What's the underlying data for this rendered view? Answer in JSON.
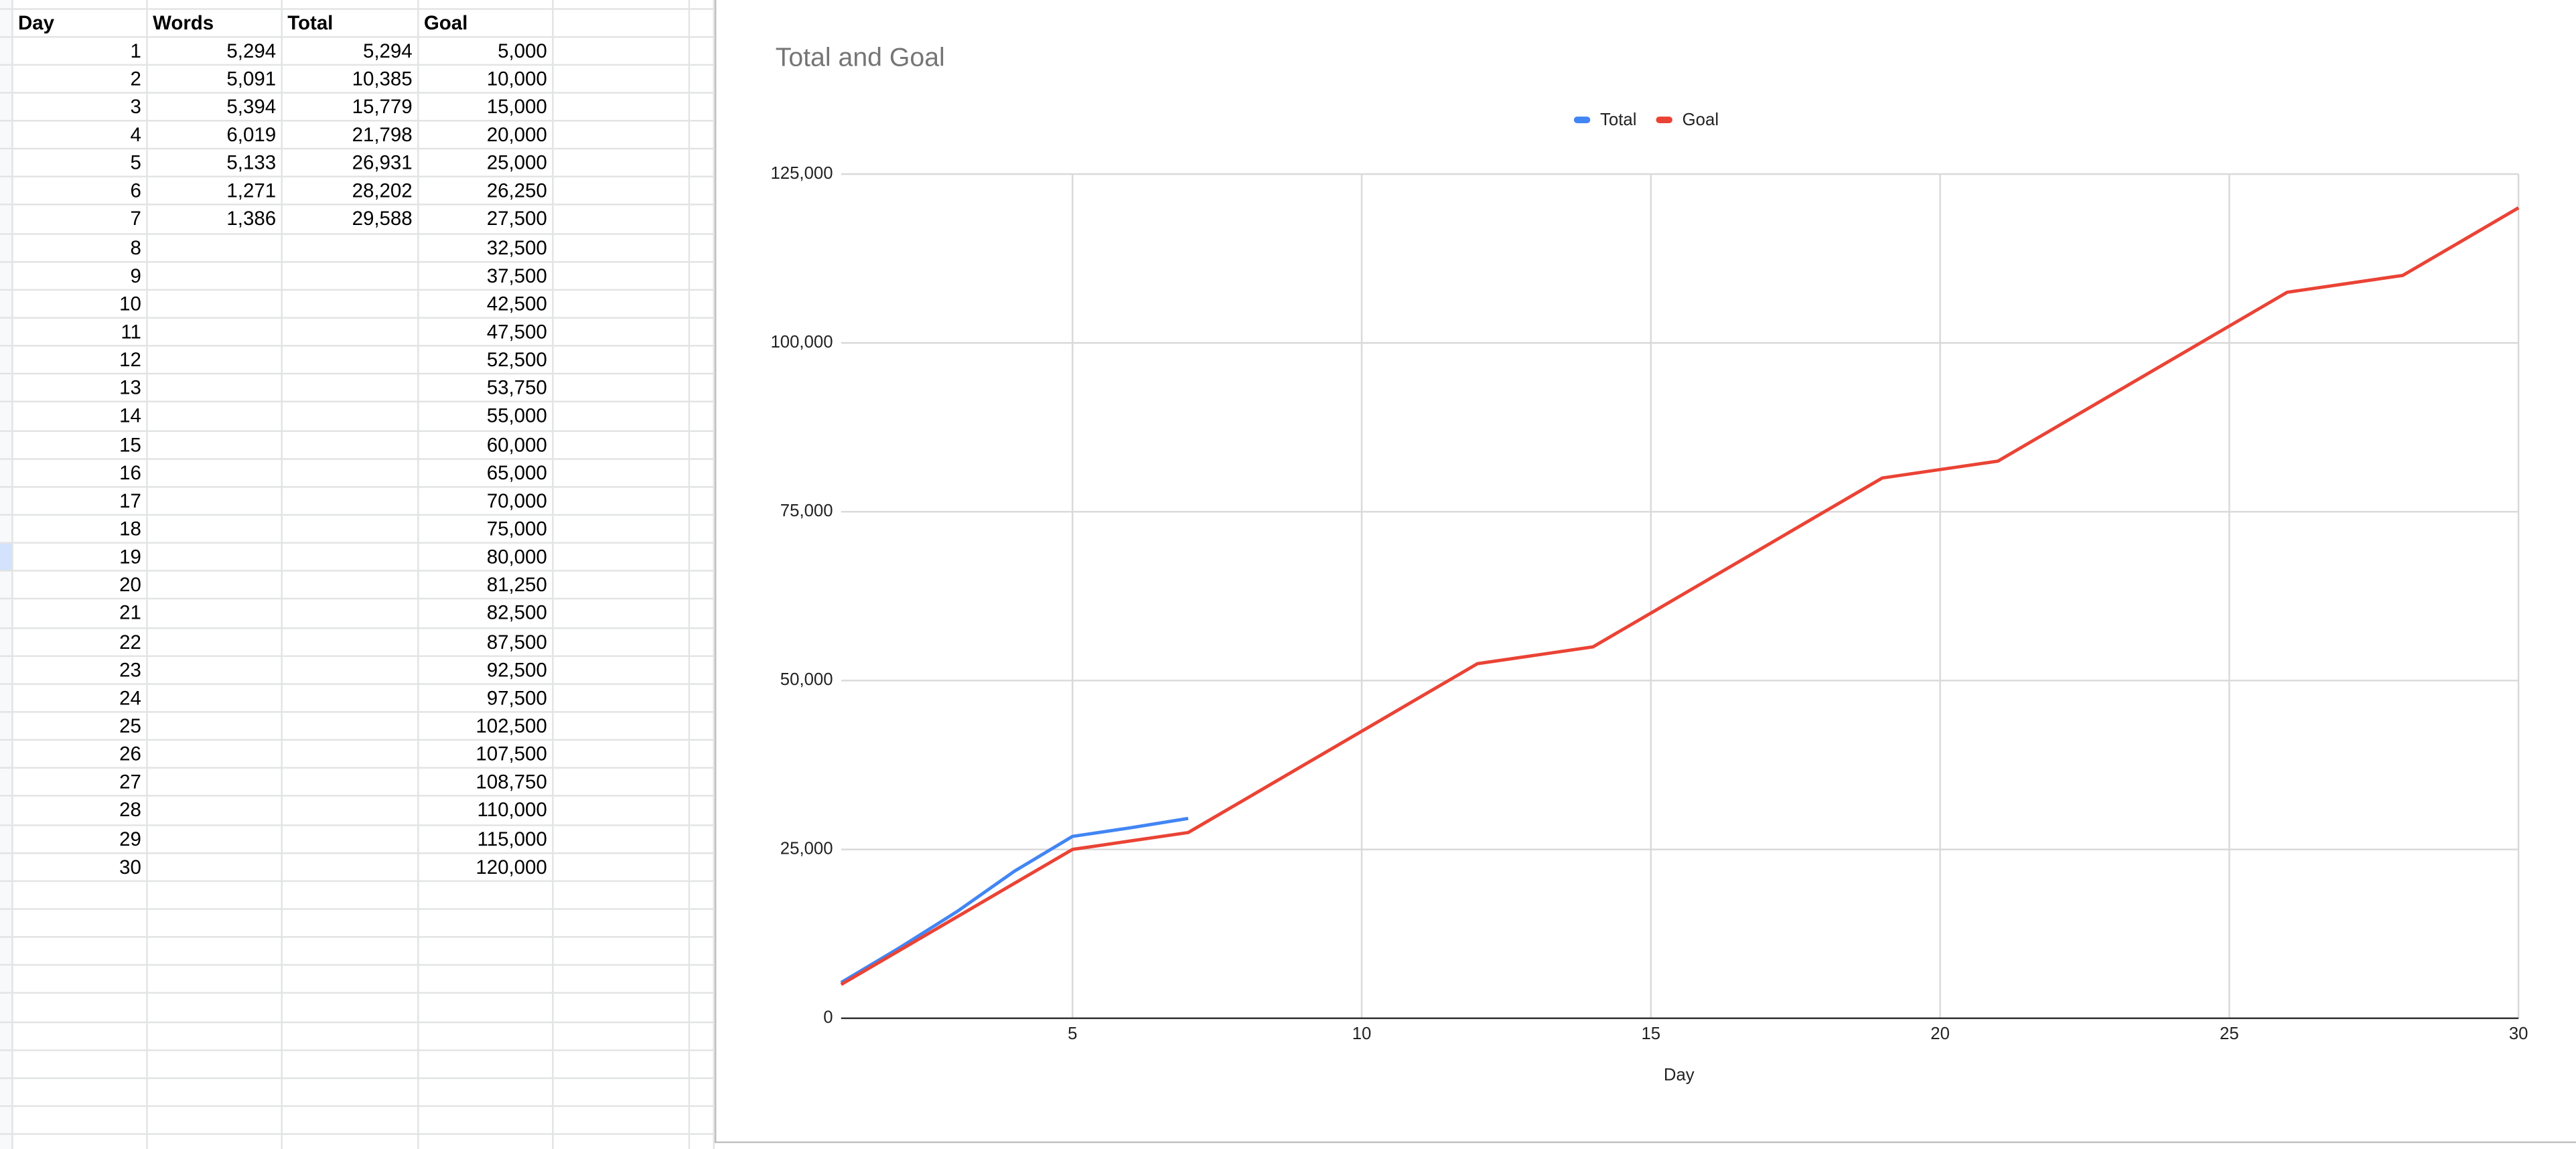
{
  "table": {
    "header": [
      "Day",
      "Words",
      "Total",
      "Goal"
    ],
    "rows": [
      {
        "day": "1",
        "words": "5,294",
        "total": "5,294",
        "goal": "5,000"
      },
      {
        "day": "2",
        "words": "5,091",
        "total": "10,385",
        "goal": "10,000"
      },
      {
        "day": "3",
        "words": "5,394",
        "total": "15,779",
        "goal": "15,000"
      },
      {
        "day": "4",
        "words": "6,019",
        "total": "21,798",
        "goal": "20,000"
      },
      {
        "day": "5",
        "words": "5,133",
        "total": "26,931",
        "goal": "25,000"
      },
      {
        "day": "6",
        "words": "1,271",
        "total": "28,202",
        "goal": "26,250"
      },
      {
        "day": "7",
        "words": "1,386",
        "total": "29,588",
        "goal": "27,500"
      },
      {
        "day": "8",
        "goal": "32,500"
      },
      {
        "day": "9",
        "goal": "37,500"
      },
      {
        "day": "10",
        "goal": "42,500"
      },
      {
        "day": "11",
        "goal": "47,500"
      },
      {
        "day": "12",
        "goal": "52,500"
      },
      {
        "day": "13",
        "goal": "53,750"
      },
      {
        "day": "14",
        "goal": "55,000"
      },
      {
        "day": "15",
        "goal": "60,000"
      },
      {
        "day": "16",
        "goal": "65,000"
      },
      {
        "day": "17",
        "goal": "70,000"
      },
      {
        "day": "18",
        "goal": "75,000"
      },
      {
        "day": "19",
        "goal": "80,000"
      },
      {
        "day": "20",
        "goal": "81,250"
      },
      {
        "day": "21",
        "goal": "82,500"
      },
      {
        "day": "22",
        "goal": "87,500"
      },
      {
        "day": "23",
        "goal": "92,500"
      },
      {
        "day": "24",
        "goal": "97,500"
      },
      {
        "day": "25",
        "goal": "102,500"
      },
      {
        "day": "26",
        "goal": "107,500"
      },
      {
        "day": "27",
        "goal": "108,750"
      },
      {
        "day": "28",
        "goal": "110,000"
      },
      {
        "day": "29",
        "goal": "115,000"
      },
      {
        "day": "30",
        "goal": "120,000"
      }
    ]
  },
  "chart_data": {
    "type": "line",
    "title": "Total and Goal",
    "x_label": "Day",
    "x": [
      1,
      2,
      3,
      4,
      5,
      6,
      7,
      8,
      9,
      10,
      11,
      12,
      13,
      14,
      15,
      16,
      17,
      18,
      19,
      20,
      21,
      22,
      23,
      24,
      25,
      26,
      27,
      28,
      29,
      30
    ],
    "series": [
      {
        "name": "Total",
        "color": "#4285f4",
        "values": [
          5294,
          10385,
          15779,
          21798,
          26931,
          28202,
          29588,
          null,
          null,
          null,
          null,
          null,
          null,
          null,
          null,
          null,
          null,
          null,
          null,
          null,
          null,
          null,
          null,
          null,
          null,
          null,
          null,
          null,
          null,
          null
        ]
      },
      {
        "name": "Goal",
        "color": "#ea4335",
        "values": [
          5000,
          10000,
          15000,
          20000,
          25000,
          26250,
          27500,
          32500,
          37500,
          42500,
          47500,
          52500,
          53750,
          55000,
          60000,
          65000,
          70000,
          75000,
          80000,
          81250,
          82500,
          87500,
          92500,
          97500,
          102500,
          107500,
          108750,
          110000,
          115000,
          120000
        ]
      }
    ],
    "xlim": [
      1,
      30
    ],
    "xticks": [
      5,
      10,
      15,
      20,
      25,
      30
    ],
    "ylim": [
      0,
      125000
    ],
    "yticks": [
      0,
      {
        "value": 25000,
        "label": "25,000"
      },
      {
        "value": 50000,
        "label": "50,000"
      },
      {
        "value": 75000,
        "label": "75,000"
      },
      {
        "value": 100000,
        "label": "100,000"
      },
      {
        "value": 125000,
        "label": "125,000"
      }
    ],
    "grid": true,
    "legend": "top"
  }
}
